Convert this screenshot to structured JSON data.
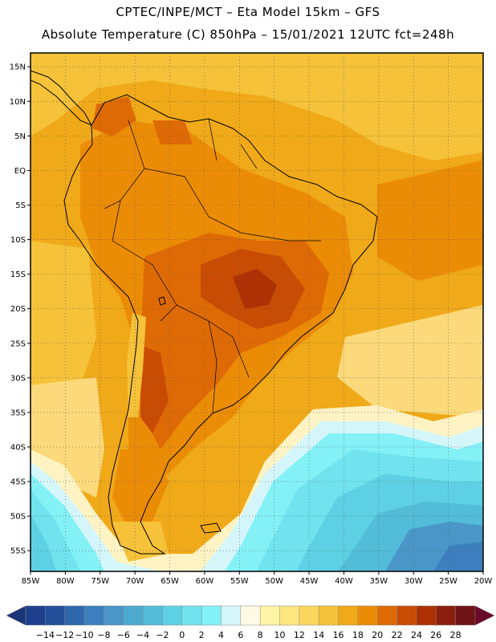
{
  "header": {
    "line1": "CPTEC/INPE/MCT –  Eta Model 15km – GFS",
    "line2": "Absolute Temperature (C) 850hPa – 15/01/2021 12UTC fct=248h"
  },
  "map": {
    "lon_range": [
      -85,
      -20
    ],
    "lat_range": [
      -58,
      17
    ],
    "lat_labels": [
      "15N",
      "10N",
      "5N",
      "EQ",
      "5S",
      "10S",
      "15S",
      "20S",
      "25S",
      "30S",
      "35S",
      "40S",
      "45S",
      "50S",
      "55S"
    ],
    "lat_values": [
      15,
      10,
      5,
      0,
      -5,
      -10,
      -15,
      -20,
      -25,
      -30,
      -35,
      -40,
      -45,
      -50,
      -55
    ],
    "lon_labels": [
      "85W",
      "80W",
      "75W",
      "70W",
      "65W",
      "60W",
      "55W",
      "50W",
      "45W",
      "40W",
      "35W",
      "30W",
      "25W",
      "20W"
    ],
    "lon_values": [
      -85,
      -80,
      -75,
      -70,
      -65,
      -60,
      -55,
      -50,
      -45,
      -40,
      -35,
      -30,
      -25,
      -20
    ]
  },
  "colorbar": {
    "labels": [
      "-14",
      "-12",
      "-10",
      "-8",
      "-6",
      "-4",
      "-2",
      "0",
      "2",
      "4",
      "6",
      "8",
      "10",
      "12",
      "14",
      "16",
      "18",
      "20",
      "22",
      "24",
      "26",
      "28"
    ],
    "colors": [
      "#1e3f8e",
      "#214f9a",
      "#2e67ac",
      "#3d7fbe",
      "#4a96c8",
      "#4ea9cf",
      "#53bcd8",
      "#5dd1e3",
      "#70e3ee",
      "#84f1f7",
      "#d4f6fb",
      "#fff9e5",
      "#fff4a6",
      "#fde680",
      "#fad55c",
      "#f5c23a",
      "#f0a918",
      "#eb8c07",
      "#de6a05",
      "#c94c04",
      "#ad3104",
      "#8c1e0d",
      "#6f1416"
    ],
    "min_color": "#1a3578",
    "max_color": "#6a0a2a"
  },
  "field_colors": {
    "c8": "#fff3c4",
    "c12": "#fcd97a",
    "c16": "#f5c23a",
    "c18": "#f0a918",
    "c20": "#eb8c07",
    "c22": "#de6a05",
    "c24": "#c94c04",
    "c26": "#ad3104",
    "cold6": "#d4f6fb",
    "cold4": "#84f1f7",
    "cold2": "#70e3ee",
    "cold0": "#5dd1e3",
    "coldm2": "#53bcd8",
    "coldm4": "#4a96c8",
    "coldm6": "#3d7fbe"
  }
}
